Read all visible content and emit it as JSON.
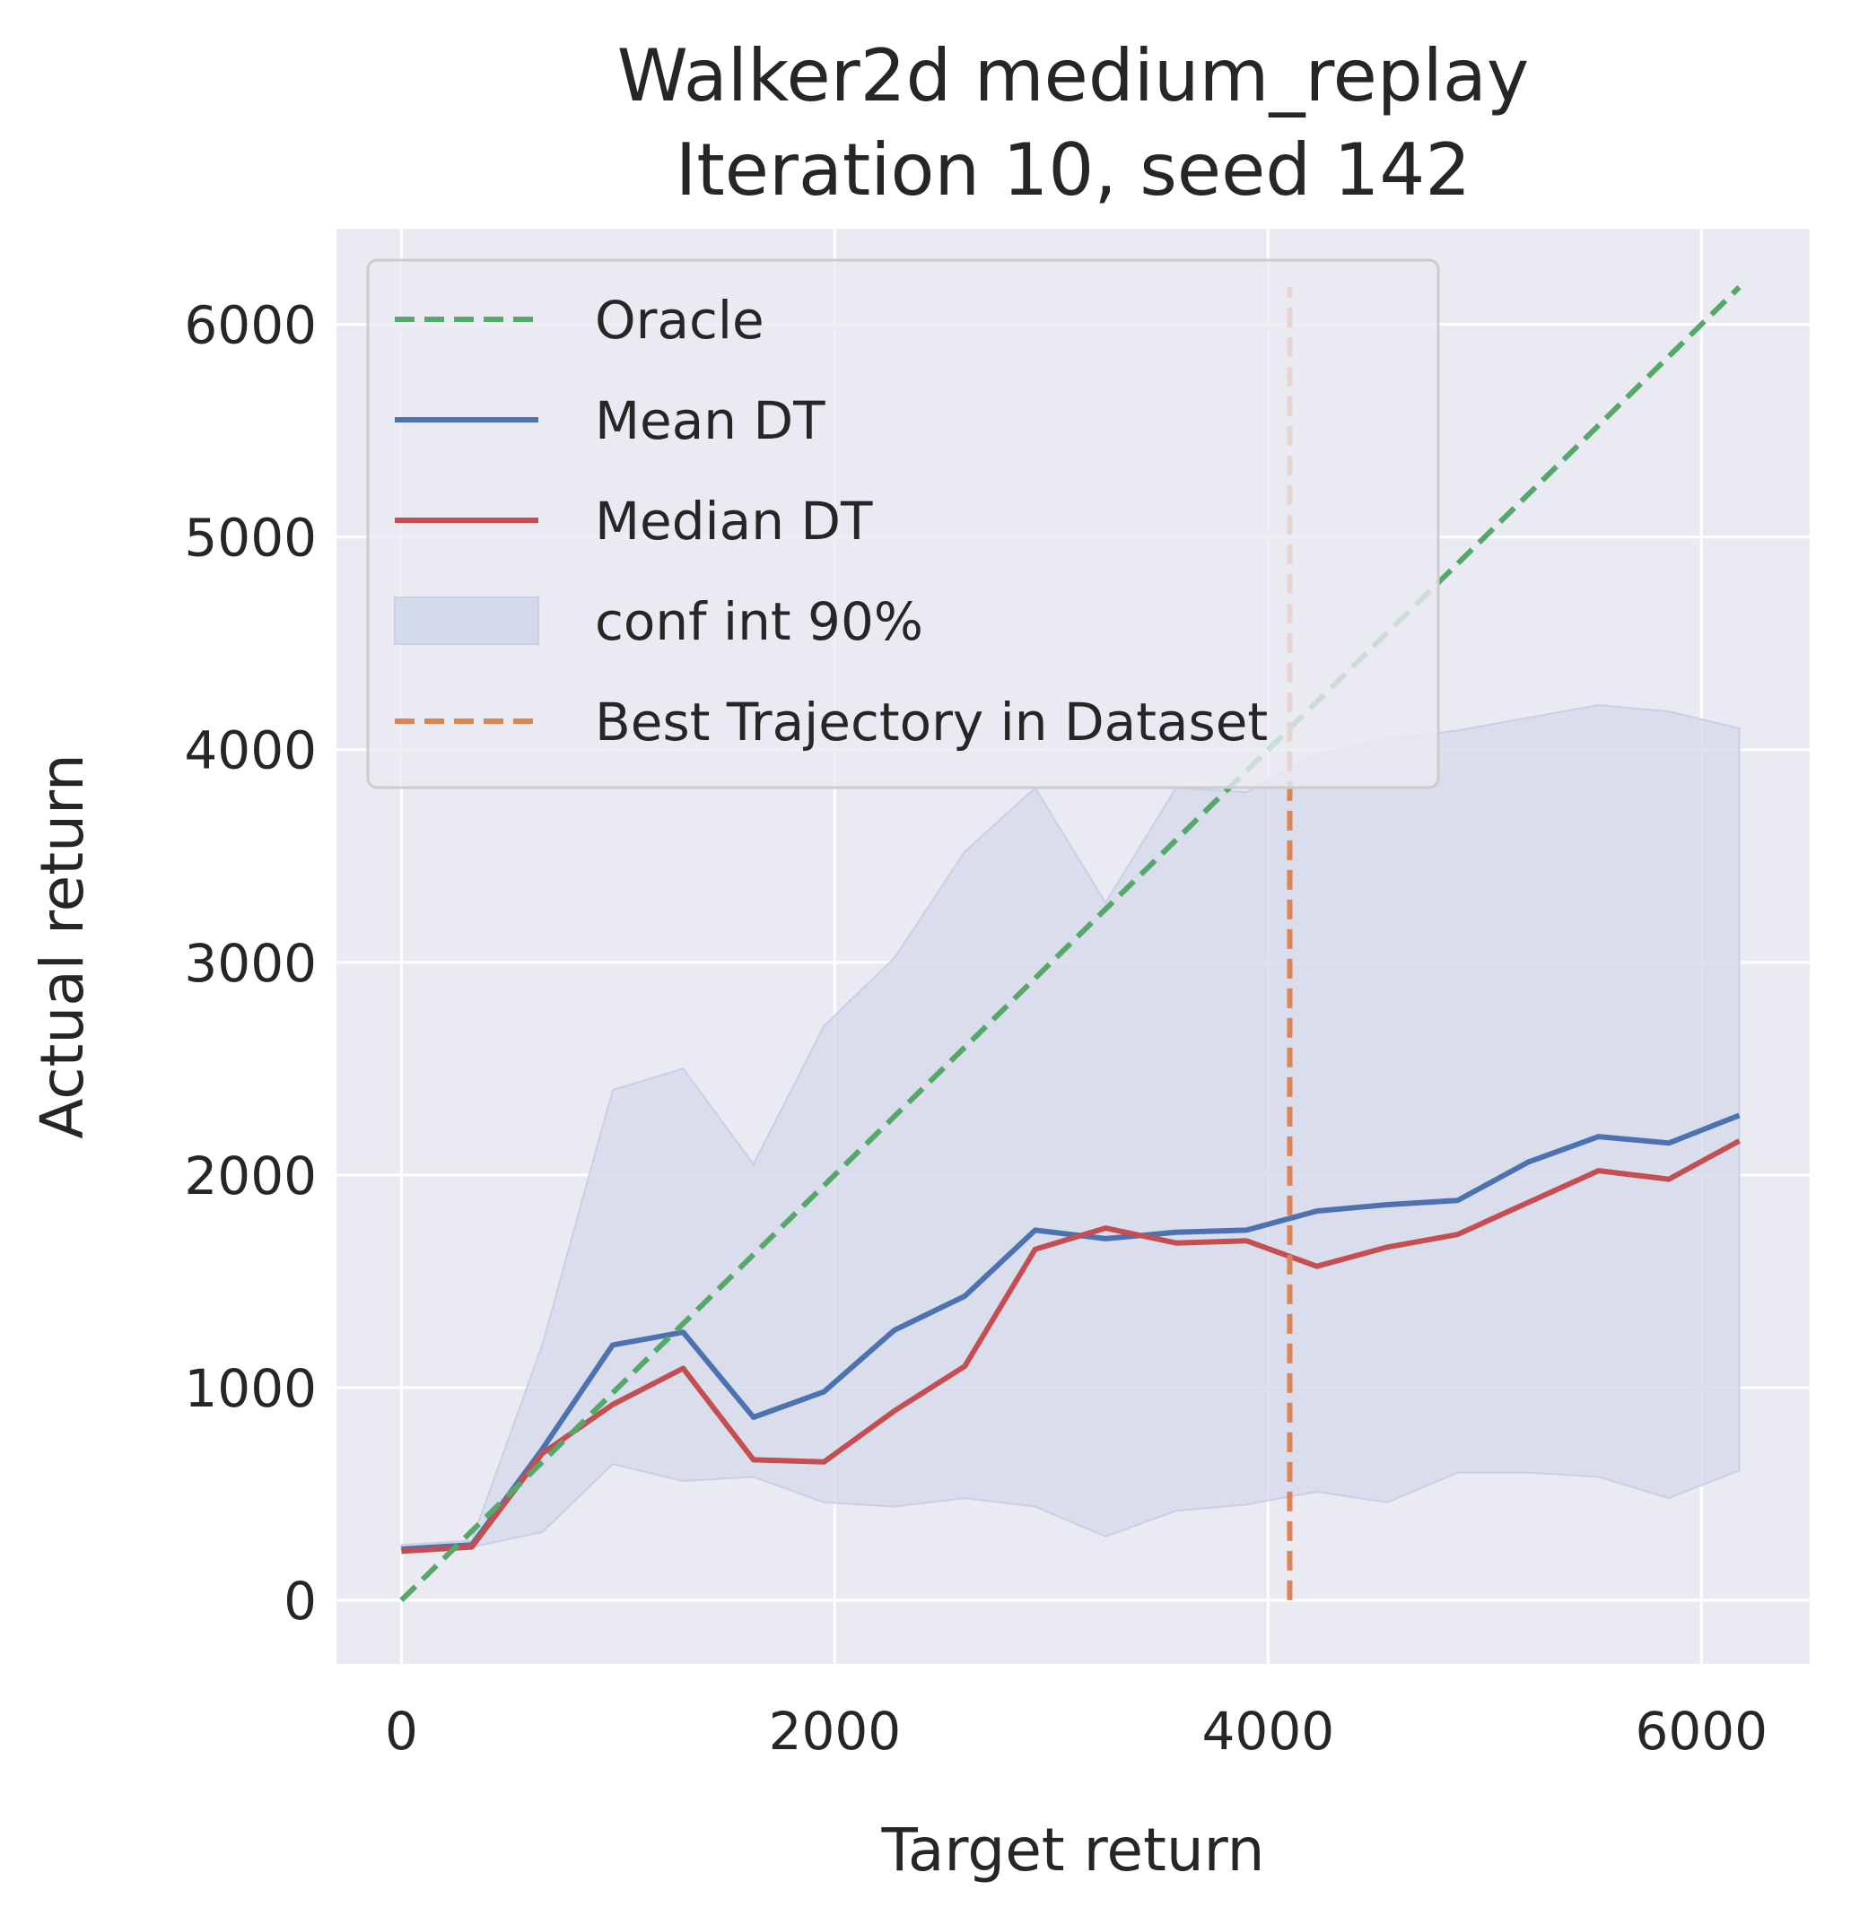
{
  "chart_data": {
    "type": "line",
    "title": [
      "Walker2d medium_replay",
      "Iteration 10, seed 142"
    ],
    "xlabel": "Target return",
    "ylabel": "Actual return",
    "xlim": [
      -300,
      6500
    ],
    "ylim": [
      -300,
      6450
    ],
    "xticks": [
      0,
      2000,
      4000,
      6000
    ],
    "yticks": [
      0,
      1000,
      2000,
      3000,
      4000,
      5000,
      6000
    ],
    "grid": true,
    "legend_position": "upper-left",
    "colors": {
      "background": "#eaeaf2",
      "grid": "#ffffff",
      "oracle": "#55a868",
      "mean": "#4c72b0",
      "median": "#c44e52",
      "band": "#d3d8ea",
      "best": "#dd8452"
    },
    "legend": [
      "Oracle",
      "Mean DT",
      "Median DT",
      "conf int 90%",
      "Best Trajectory in Dataset"
    ],
    "x": [
      0,
      325,
      650,
      975,
      1300,
      1625,
      1950,
      2275,
      2600,
      2925,
      3250,
      3575,
      3900,
      4225,
      4550,
      4875,
      5200,
      5525,
      5850,
      6175
    ],
    "series": [
      {
        "name": "Mean DT",
        "style": "solid",
        "values": [
          240,
          260,
          710,
          1200,
          1260,
          860,
          980,
          1270,
          1430,
          1740,
          1700,
          1730,
          1740,
          1830,
          1860,
          1880,
          2060,
          2180,
          2150,
          2280
        ]
      },
      {
        "name": "Median DT",
        "style": "solid",
        "values": [
          230,
          250,
          690,
          920,
          1090,
          660,
          650,
          890,
          1100,
          1650,
          1750,
          1680,
          1690,
          1570,
          1660,
          1720,
          1870,
          2020,
          1980,
          2160
        ]
      },
      {
        "name": "Oracle",
        "style": "dashed",
        "x": [
          0,
          6175
        ],
        "values": [
          0,
          6175
        ]
      }
    ],
    "confidence_band": {
      "name": "conf int 90%",
      "upper": [
        260,
        280,
        1200,
        2400,
        2500,
        2050,
        2700,
        3020,
        3520,
        3820,
        3280,
        3820,
        3800,
        3980,
        4050,
        4090,
        4150,
        4210,
        4180,
        4100
      ],
      "lower": [
        240,
        250,
        320,
        640,
        560,
        580,
        460,
        440,
        480,
        440,
        300,
        420,
        450,
        510,
        460,
        600,
        600,
        580,
        480,
        610
      ]
    },
    "vertical_line": {
      "name": "Best Trajectory in Dataset",
      "x": 4100,
      "y_range": [
        0,
        6175
      ],
      "style": "dashed"
    }
  }
}
